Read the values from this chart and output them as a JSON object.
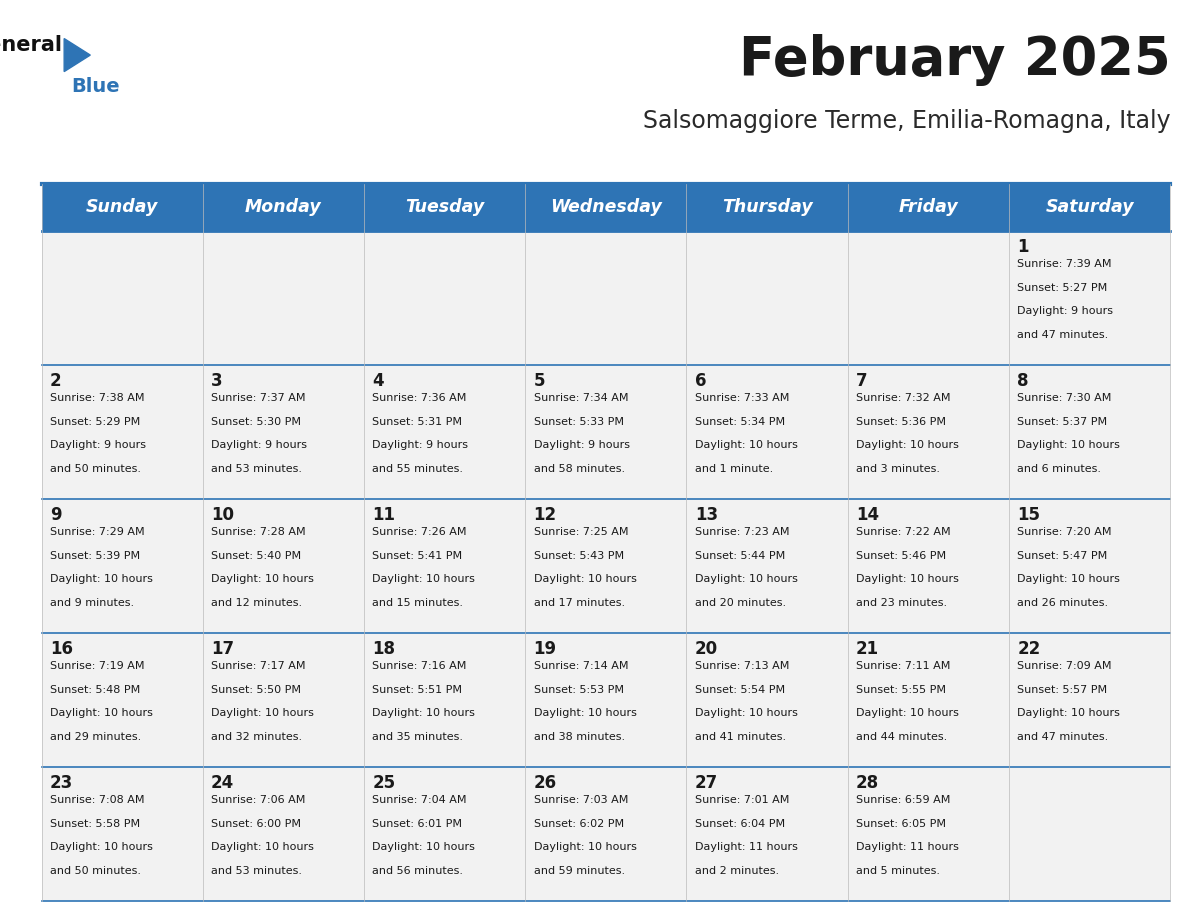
{
  "title": "February 2025",
  "subtitle": "Salsomaggiore Terme, Emilia-Romagna, Italy",
  "header_bg": "#2E74B5",
  "header_text": "#FFFFFF",
  "cell_bg_light": "#F2F2F2",
  "separator_color": "#2E74B5",
  "day_headers": [
    "Sunday",
    "Monday",
    "Tuesday",
    "Wednesday",
    "Thursday",
    "Friday",
    "Saturday"
  ],
  "days": [
    {
      "day": 1,
      "col": 6,
      "row": 0,
      "sunrise": "7:39 AM",
      "sunset": "5:27 PM",
      "daylight_line1": "Daylight: 9 hours",
      "daylight_line2": "and 47 minutes."
    },
    {
      "day": 2,
      "col": 0,
      "row": 1,
      "sunrise": "7:38 AM",
      "sunset": "5:29 PM",
      "daylight_line1": "Daylight: 9 hours",
      "daylight_line2": "and 50 minutes."
    },
    {
      "day": 3,
      "col": 1,
      "row": 1,
      "sunrise": "7:37 AM",
      "sunset": "5:30 PM",
      "daylight_line1": "Daylight: 9 hours",
      "daylight_line2": "and 53 minutes."
    },
    {
      "day": 4,
      "col": 2,
      "row": 1,
      "sunrise": "7:36 AM",
      "sunset": "5:31 PM",
      "daylight_line1": "Daylight: 9 hours",
      "daylight_line2": "and 55 minutes."
    },
    {
      "day": 5,
      "col": 3,
      "row": 1,
      "sunrise": "7:34 AM",
      "sunset": "5:33 PM",
      "daylight_line1": "Daylight: 9 hours",
      "daylight_line2": "and 58 minutes."
    },
    {
      "day": 6,
      "col": 4,
      "row": 1,
      "sunrise": "7:33 AM",
      "sunset": "5:34 PM",
      "daylight_line1": "Daylight: 10 hours",
      "daylight_line2": "and 1 minute."
    },
    {
      "day": 7,
      "col": 5,
      "row": 1,
      "sunrise": "7:32 AM",
      "sunset": "5:36 PM",
      "daylight_line1": "Daylight: 10 hours",
      "daylight_line2": "and 3 minutes."
    },
    {
      "day": 8,
      "col": 6,
      "row": 1,
      "sunrise": "7:30 AM",
      "sunset": "5:37 PM",
      "daylight_line1": "Daylight: 10 hours",
      "daylight_line2": "and 6 minutes."
    },
    {
      "day": 9,
      "col": 0,
      "row": 2,
      "sunrise": "7:29 AM",
      "sunset": "5:39 PM",
      "daylight_line1": "Daylight: 10 hours",
      "daylight_line2": "and 9 minutes."
    },
    {
      "day": 10,
      "col": 1,
      "row": 2,
      "sunrise": "7:28 AM",
      "sunset": "5:40 PM",
      "daylight_line1": "Daylight: 10 hours",
      "daylight_line2": "and 12 minutes."
    },
    {
      "day": 11,
      "col": 2,
      "row": 2,
      "sunrise": "7:26 AM",
      "sunset": "5:41 PM",
      "daylight_line1": "Daylight: 10 hours",
      "daylight_line2": "and 15 minutes."
    },
    {
      "day": 12,
      "col": 3,
      "row": 2,
      "sunrise": "7:25 AM",
      "sunset": "5:43 PM",
      "daylight_line1": "Daylight: 10 hours",
      "daylight_line2": "and 17 minutes."
    },
    {
      "day": 13,
      "col": 4,
      "row": 2,
      "sunrise": "7:23 AM",
      "sunset": "5:44 PM",
      "daylight_line1": "Daylight: 10 hours",
      "daylight_line2": "and 20 minutes."
    },
    {
      "day": 14,
      "col": 5,
      "row": 2,
      "sunrise": "7:22 AM",
      "sunset": "5:46 PM",
      "daylight_line1": "Daylight: 10 hours",
      "daylight_line2": "and 23 minutes."
    },
    {
      "day": 15,
      "col": 6,
      "row": 2,
      "sunrise": "7:20 AM",
      "sunset": "5:47 PM",
      "daylight_line1": "Daylight: 10 hours",
      "daylight_line2": "and 26 minutes."
    },
    {
      "day": 16,
      "col": 0,
      "row": 3,
      "sunrise": "7:19 AM",
      "sunset": "5:48 PM",
      "daylight_line1": "Daylight: 10 hours",
      "daylight_line2": "and 29 minutes."
    },
    {
      "day": 17,
      "col": 1,
      "row": 3,
      "sunrise": "7:17 AM",
      "sunset": "5:50 PM",
      "daylight_line1": "Daylight: 10 hours",
      "daylight_line2": "and 32 minutes."
    },
    {
      "day": 18,
      "col": 2,
      "row": 3,
      "sunrise": "7:16 AM",
      "sunset": "5:51 PM",
      "daylight_line1": "Daylight: 10 hours",
      "daylight_line2": "and 35 minutes."
    },
    {
      "day": 19,
      "col": 3,
      "row": 3,
      "sunrise": "7:14 AM",
      "sunset": "5:53 PM",
      "daylight_line1": "Daylight: 10 hours",
      "daylight_line2": "and 38 minutes."
    },
    {
      "day": 20,
      "col": 4,
      "row": 3,
      "sunrise": "7:13 AM",
      "sunset": "5:54 PM",
      "daylight_line1": "Daylight: 10 hours",
      "daylight_line2": "and 41 minutes."
    },
    {
      "day": 21,
      "col": 5,
      "row": 3,
      "sunrise": "7:11 AM",
      "sunset": "5:55 PM",
      "daylight_line1": "Daylight: 10 hours",
      "daylight_line2": "and 44 minutes."
    },
    {
      "day": 22,
      "col": 6,
      "row": 3,
      "sunrise": "7:09 AM",
      "sunset": "5:57 PM",
      "daylight_line1": "Daylight: 10 hours",
      "daylight_line2": "and 47 minutes."
    },
    {
      "day": 23,
      "col": 0,
      "row": 4,
      "sunrise": "7:08 AM",
      "sunset": "5:58 PM",
      "daylight_line1": "Daylight: 10 hours",
      "daylight_line2": "and 50 minutes."
    },
    {
      "day": 24,
      "col": 1,
      "row": 4,
      "sunrise": "7:06 AM",
      "sunset": "6:00 PM",
      "daylight_line1": "Daylight: 10 hours",
      "daylight_line2": "and 53 minutes."
    },
    {
      "day": 25,
      "col": 2,
      "row": 4,
      "sunrise": "7:04 AM",
      "sunset": "6:01 PM",
      "daylight_line1": "Daylight: 10 hours",
      "daylight_line2": "and 56 minutes."
    },
    {
      "day": 26,
      "col": 3,
      "row": 4,
      "sunrise": "7:03 AM",
      "sunset": "6:02 PM",
      "daylight_line1": "Daylight: 10 hours",
      "daylight_line2": "and 59 minutes."
    },
    {
      "day": 27,
      "col": 4,
      "row": 4,
      "sunrise": "7:01 AM",
      "sunset": "6:04 PM",
      "daylight_line1": "Daylight: 11 hours",
      "daylight_line2": "and 2 minutes."
    },
    {
      "day": 28,
      "col": 5,
      "row": 4,
      "sunrise": "6:59 AM",
      "sunset": "6:05 PM",
      "daylight_line1": "Daylight: 11 hours",
      "daylight_line2": "and 5 minutes."
    }
  ],
  "num_rows": 5,
  "num_cols": 7
}
